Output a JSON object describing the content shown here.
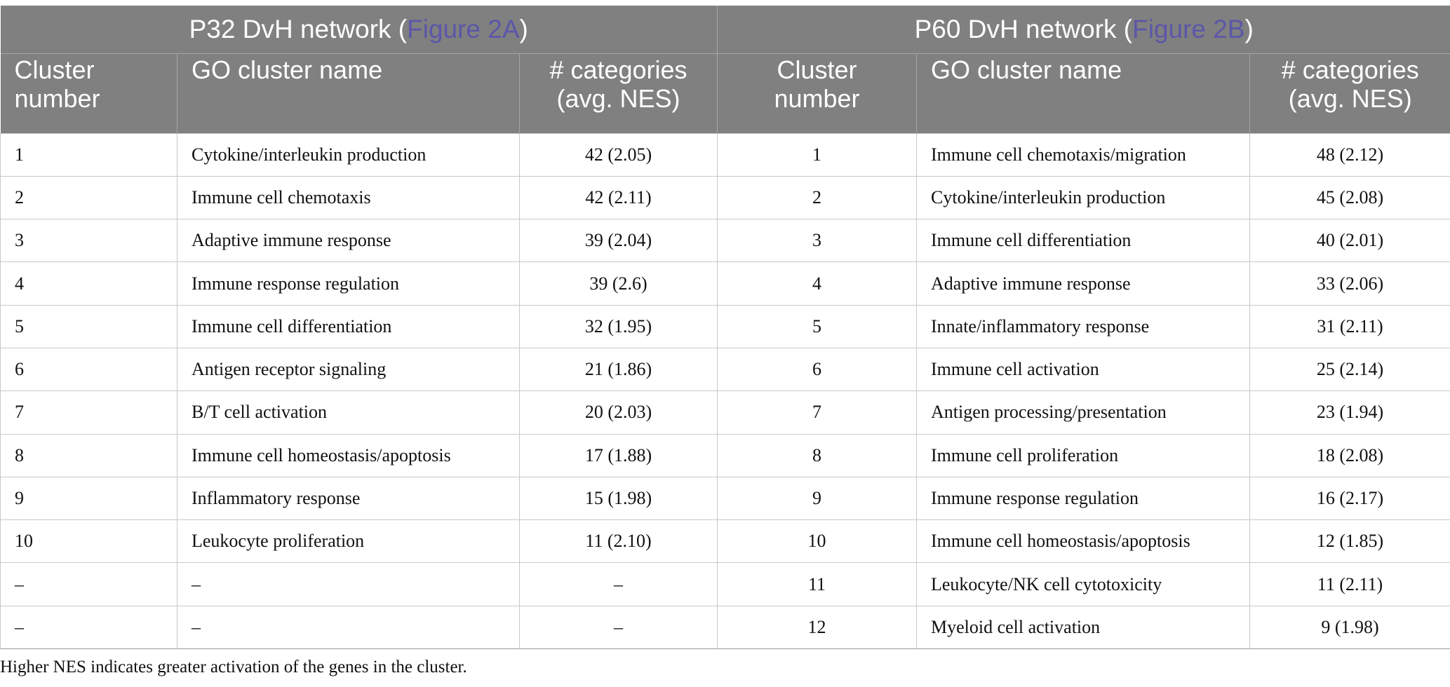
{
  "groups": [
    {
      "title_prefix": "P32 DvH network (",
      "link": "Figure 2A",
      "title_suffix": ")"
    },
    {
      "title_prefix": "P60 DvH network (",
      "link": "Figure 2B",
      "title_suffix": ")"
    }
  ],
  "columns": {
    "cluster_number": [
      "Cluster",
      "number"
    ],
    "go_name": "GO cluster name",
    "categories": [
      "# categories",
      "(avg. NES)"
    ]
  },
  "rows": [
    {
      "p32": {
        "num": "1",
        "name": "Cytokine/interleukin production",
        "cat": "42 (2.05)"
      },
      "p60": {
        "num": "1",
        "name": "Immune cell chemotaxis/migration",
        "cat": "48 (2.12)"
      }
    },
    {
      "p32": {
        "num": "2",
        "name": "Immune cell chemotaxis",
        "cat": "42 (2.11)"
      },
      "p60": {
        "num": "2",
        "name": "Cytokine/interleukin production",
        "cat": "45 (2.08)"
      }
    },
    {
      "p32": {
        "num": "3",
        "name": "Adaptive immune response",
        "cat": "39 (2.04)"
      },
      "p60": {
        "num": "3",
        "name": "Immune cell differentiation",
        "cat": "40 (2.01)"
      }
    },
    {
      "p32": {
        "num": "4",
        "name": "Immune response regulation",
        "cat": "39 (2.6)"
      },
      "p60": {
        "num": "4",
        "name": "Adaptive immune response",
        "cat": "33 (2.06)"
      }
    },
    {
      "p32": {
        "num": "5",
        "name": "Immune cell differentiation",
        "cat": "32 (1.95)"
      },
      "p60": {
        "num": "5",
        "name": "Innate/inflammatory response",
        "cat": "31 (2.11)"
      }
    },
    {
      "p32": {
        "num": "6",
        "name": "Antigen receptor signaling",
        "cat": "21 (1.86)"
      },
      "p60": {
        "num": "6",
        "name": "Immune cell activation",
        "cat": "25 (2.14)"
      }
    },
    {
      "p32": {
        "num": "7",
        "name": "B/T cell activation",
        "cat": "20 (2.03)"
      },
      "p60": {
        "num": "7",
        "name": "Antigen processing/presentation",
        "cat": "23 (1.94)"
      }
    },
    {
      "p32": {
        "num": "8",
        "name": "Immune cell homeostasis/apoptosis",
        "cat": "17 (1.88)"
      },
      "p60": {
        "num": "8",
        "name": "Immune cell proliferation",
        "cat": "18 (2.08)"
      }
    },
    {
      "p32": {
        "num": "9",
        "name": "Inflammatory response",
        "cat": "15 (1.98)"
      },
      "p60": {
        "num": "9",
        "name": "Immune response regulation",
        "cat": "16 (2.17)"
      }
    },
    {
      "p32": {
        "num": "10",
        "name": "Leukocyte proliferation",
        "cat": "11 (2.10)"
      },
      "p60": {
        "num": "10",
        "name": "Immune cell homeostasis/apoptosis",
        "cat": "12 (1.85)"
      }
    },
    {
      "p32": {
        "num": "–",
        "name": "–",
        "cat": "–"
      },
      "p60": {
        "num": "11",
        "name": "Leukocyte/NK cell cytotoxicity",
        "cat": "11 (2.11)"
      }
    },
    {
      "p32": {
        "num": "–",
        "name": "–",
        "cat": "–"
      },
      "p60": {
        "num": "12",
        "name": "Myeloid cell activation",
        "cat": "9 (1.98)"
      }
    }
  ],
  "footnote": "Higher NES indicates greater activation of the genes in the cluster.",
  "colors": {
    "header_bg": "#808080",
    "header_text": "#ffffff",
    "link": "#5b57a8"
  }
}
